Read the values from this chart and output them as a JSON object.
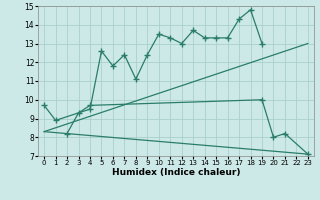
{
  "xlabel": "Humidex (Indice chaleur)",
  "x": [
    0,
    1,
    2,
    3,
    4,
    5,
    6,
    7,
    8,
    9,
    10,
    11,
    12,
    13,
    14,
    15,
    16,
    17,
    18,
    19,
    20,
    21,
    22,
    23
  ],
  "line1_x": [
    0,
    1,
    4,
    5,
    6,
    7,
    8,
    9,
    10,
    11,
    12,
    13,
    14,
    15,
    16,
    17,
    18,
    19
  ],
  "line1_y": [
    9.7,
    8.9,
    9.5,
    12.6,
    11.8,
    12.4,
    11.1,
    12.4,
    13.5,
    13.3,
    13.0,
    13.7,
    13.3,
    13.3,
    13.3,
    14.3,
    14.8,
    13.0
  ],
  "line2_x": [
    2,
    3,
    4,
    19,
    20,
    21,
    23
  ],
  "line2_y": [
    8.2,
    9.3,
    9.7,
    10.0,
    8.0,
    8.2,
    7.1
  ],
  "upper_line_x": [
    0,
    23
  ],
  "upper_line_y": [
    8.3,
    13.0
  ],
  "lower_line_x": [
    0,
    23
  ],
  "lower_line_y": [
    8.3,
    7.1
  ],
  "color": "#2a7d6a",
  "bg_color": "#cce9e7",
  "grid_color": "#aacfcc",
  "ylim": [
    7,
    15
  ],
  "xlim": [
    -0.5,
    23.5
  ],
  "yticks": [
    7,
    8,
    9,
    10,
    11,
    12,
    13,
    14,
    15
  ],
  "xticks": [
    0,
    1,
    2,
    3,
    4,
    5,
    6,
    7,
    8,
    9,
    10,
    11,
    12,
    13,
    14,
    15,
    16,
    17,
    18,
    19,
    20,
    21,
    22,
    23
  ]
}
